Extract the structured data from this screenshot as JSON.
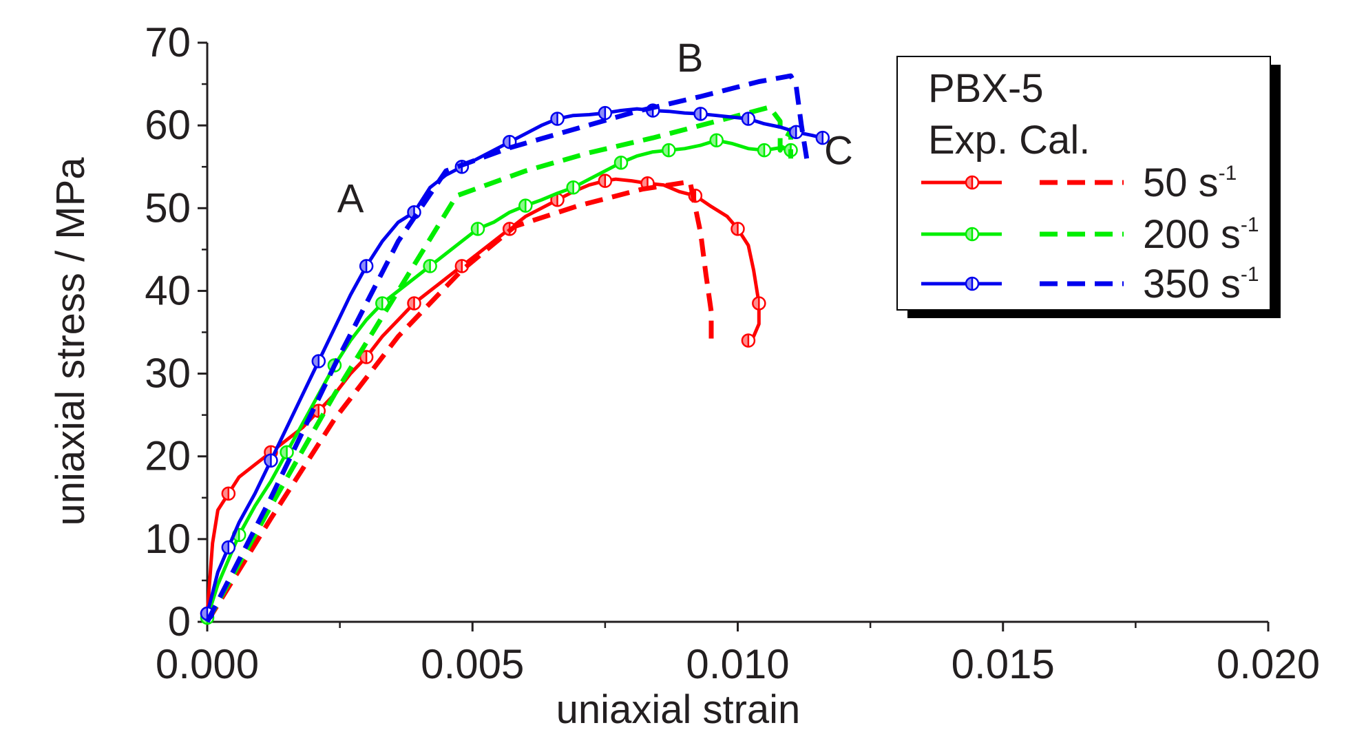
{
  "chart_data": {
    "type": "line",
    "title": "",
    "xlabel": "uniaxial strain",
    "ylabel": "uniaxial stress / MPa",
    "xlim": [
      0.0,
      0.02
    ],
    "ylim": [
      0,
      70
    ],
    "x_ticks": [
      "0.000",
      "0.005",
      "0.010",
      "0.015",
      "0.020"
    ],
    "y_ticks": [
      "0",
      "10",
      "20",
      "30",
      "40",
      "50",
      "60",
      "70"
    ],
    "grid": false,
    "legend": {
      "placement": "top-right",
      "title_line1": "PBX-5",
      "title_line2": "Exp. Cal.",
      "entries": [
        {
          "base": "50 s",
          "exp": "-1"
        },
        {
          "base": "200 s",
          "exp": "-1"
        },
        {
          "base": "350 s",
          "exp": "-1"
        }
      ]
    },
    "annotations": [
      {
        "text": "A",
        "x": 0.0027,
        "y": 49.5
      },
      {
        "text": "B",
        "x": 0.0091,
        "y": 66.5
      },
      {
        "text": "C",
        "x": 0.0119,
        "y": 55.3
      }
    ],
    "series": [
      {
        "name": "50 s-1 Exp.",
        "rate": "50 s-1",
        "kind": "experiment",
        "color": "#ff0000",
        "x": [
          0.0,
          0.0001,
          0.0002,
          0.0004,
          0.0006,
          0.0009,
          0.0012,
          0.0015,
          0.0018,
          0.0021,
          0.0024,
          0.0027,
          0.003,
          0.0033,
          0.0036,
          0.0039,
          0.0042,
          0.0045,
          0.0048,
          0.0051,
          0.0054,
          0.0057,
          0.006,
          0.0063,
          0.0066,
          0.0069,
          0.0072,
          0.0075,
          0.0077,
          0.008,
          0.0083,
          0.0086,
          0.0089,
          0.0092,
          0.0095,
          0.0098,
          0.01,
          0.0102,
          0.0103,
          0.0104,
          0.0104,
          0.0103,
          0.0102
        ],
        "y": [
          1.0,
          9.5,
          13.5,
          15.5,
          17.5,
          19.0,
          20.5,
          22.0,
          23.5,
          25.5,
          27.5,
          30.0,
          32.0,
          34.5,
          36.5,
          38.5,
          40.0,
          41.5,
          43.0,
          44.5,
          46.0,
          47.5,
          49.0,
          50.0,
          51.0,
          52.0,
          52.8,
          53.3,
          53.5,
          53.3,
          53.0,
          52.8,
          52.0,
          51.5,
          50.2,
          49.0,
          47.5,
          45.5,
          42.5,
          38.5,
          36.0,
          34.5,
          34.0
        ]
      },
      {
        "name": "50 s-1 Cal.",
        "rate": "50 s-1",
        "kind": "calculation",
        "color": "#ff0000",
        "x": [
          0.0,
          0.0012,
          0.0024,
          0.0036,
          0.0048,
          0.0058,
          0.007,
          0.0082,
          0.0091,
          0.0093,
          0.0094,
          0.0095,
          0.0095
        ],
        "y": [
          0.0,
          12.5,
          24.5,
          34.5,
          42.5,
          47.8,
          50.3,
          52.3,
          53.2,
          47.0,
          42.0,
          37.5,
          34.0
        ]
      },
      {
        "name": "200 s-1 Exp.",
        "rate": "200 s-1",
        "kind": "experiment",
        "color": "#00ee00",
        "x": [
          0.0,
          0.0002,
          0.0004,
          0.0006,
          0.0009,
          0.0012,
          0.0015,
          0.0018,
          0.0021,
          0.0024,
          0.0027,
          0.003,
          0.0033,
          0.0036,
          0.0039,
          0.0042,
          0.0045,
          0.0048,
          0.0051,
          0.0054,
          0.0057,
          0.006,
          0.0063,
          0.0066,
          0.0069,
          0.0072,
          0.0075,
          0.0078,
          0.0081,
          0.0084,
          0.0087,
          0.009,
          0.0093,
          0.0096,
          0.0099,
          0.0102,
          0.0105,
          0.0108,
          0.011
        ],
        "y": [
          0.5,
          4.5,
          7.5,
          10.5,
          14.0,
          17.0,
          20.5,
          24.0,
          27.5,
          31.0,
          34.0,
          36.5,
          38.5,
          40.0,
          41.5,
          43.0,
          44.5,
          46.0,
          47.5,
          48.3,
          49.5,
          50.3,
          51.0,
          51.8,
          52.5,
          53.5,
          54.5,
          55.5,
          56.3,
          56.8,
          57.0,
          57.2,
          57.6,
          58.2,
          57.8,
          57.2,
          57.0,
          57.3,
          57.0
        ]
      },
      {
        "name": "200 s-1 Cal.",
        "rate": "200 s-1",
        "kind": "calculation",
        "color": "#00ee00",
        "x": [
          0.0,
          0.0012,
          0.0024,
          0.0036,
          0.0047,
          0.006,
          0.0072,
          0.0084,
          0.0096,
          0.0106,
          0.0108,
          0.0108,
          0.011,
          0.011
        ],
        "y": [
          0.0,
          14.0,
          27.5,
          40.0,
          51.5,
          54.5,
          56.7,
          58.5,
          60.5,
          62.2,
          60.5,
          57.0,
          59.5,
          56.0
        ]
      },
      {
        "name": "350 s-1 Exp.",
        "rate": "350 s-1",
        "kind": "experiment",
        "color": "#0000ee",
        "x": [
          0.0,
          0.0001,
          0.0002,
          0.0004,
          0.0006,
          0.0009,
          0.0012,
          0.0015,
          0.0018,
          0.0021,
          0.0024,
          0.0027,
          0.003,
          0.0033,
          0.0036,
          0.0039,
          0.0042,
          0.0045,
          0.0048,
          0.0051,
          0.0054,
          0.0057,
          0.006,
          0.0063,
          0.0066,
          0.0069,
          0.0072,
          0.0075,
          0.0078,
          0.0081,
          0.0084,
          0.0087,
          0.009,
          0.0093,
          0.0096,
          0.0099,
          0.0102,
          0.0105,
          0.0108,
          0.0111,
          0.0114,
          0.0116
        ],
        "y": [
          1.0,
          3.5,
          6.0,
          9.0,
          12.0,
          15.5,
          19.5,
          23.5,
          27.5,
          31.5,
          35.5,
          39.5,
          43.0,
          46.0,
          48.3,
          49.5,
          52.5,
          54.0,
          55.0,
          56.0,
          57.0,
          58.0,
          59.0,
          60.0,
          60.8,
          61.2,
          61.3,
          61.5,
          61.8,
          62.0,
          61.8,
          61.7,
          61.5,
          61.4,
          61.2,
          61.0,
          60.8,
          60.2,
          59.8,
          59.2,
          58.8,
          58.5
        ]
      },
      {
        "name": "350 s-1 Cal.",
        "rate": "350 s-1",
        "kind": "calculation",
        "color": "#0000ee",
        "x": [
          0.0,
          0.0012,
          0.0024,
          0.0036,
          0.0045,
          0.0057,
          0.0069,
          0.0081,
          0.0093,
          0.0104,
          0.011,
          0.0111,
          0.0112,
          0.0113
        ],
        "y": [
          0.0,
          15.0,
          31.0,
          46.0,
          54.5,
          57.3,
          59.5,
          61.7,
          63.5,
          65.3,
          66.0,
          64.8,
          60.0,
          56.0
        ]
      }
    ]
  }
}
